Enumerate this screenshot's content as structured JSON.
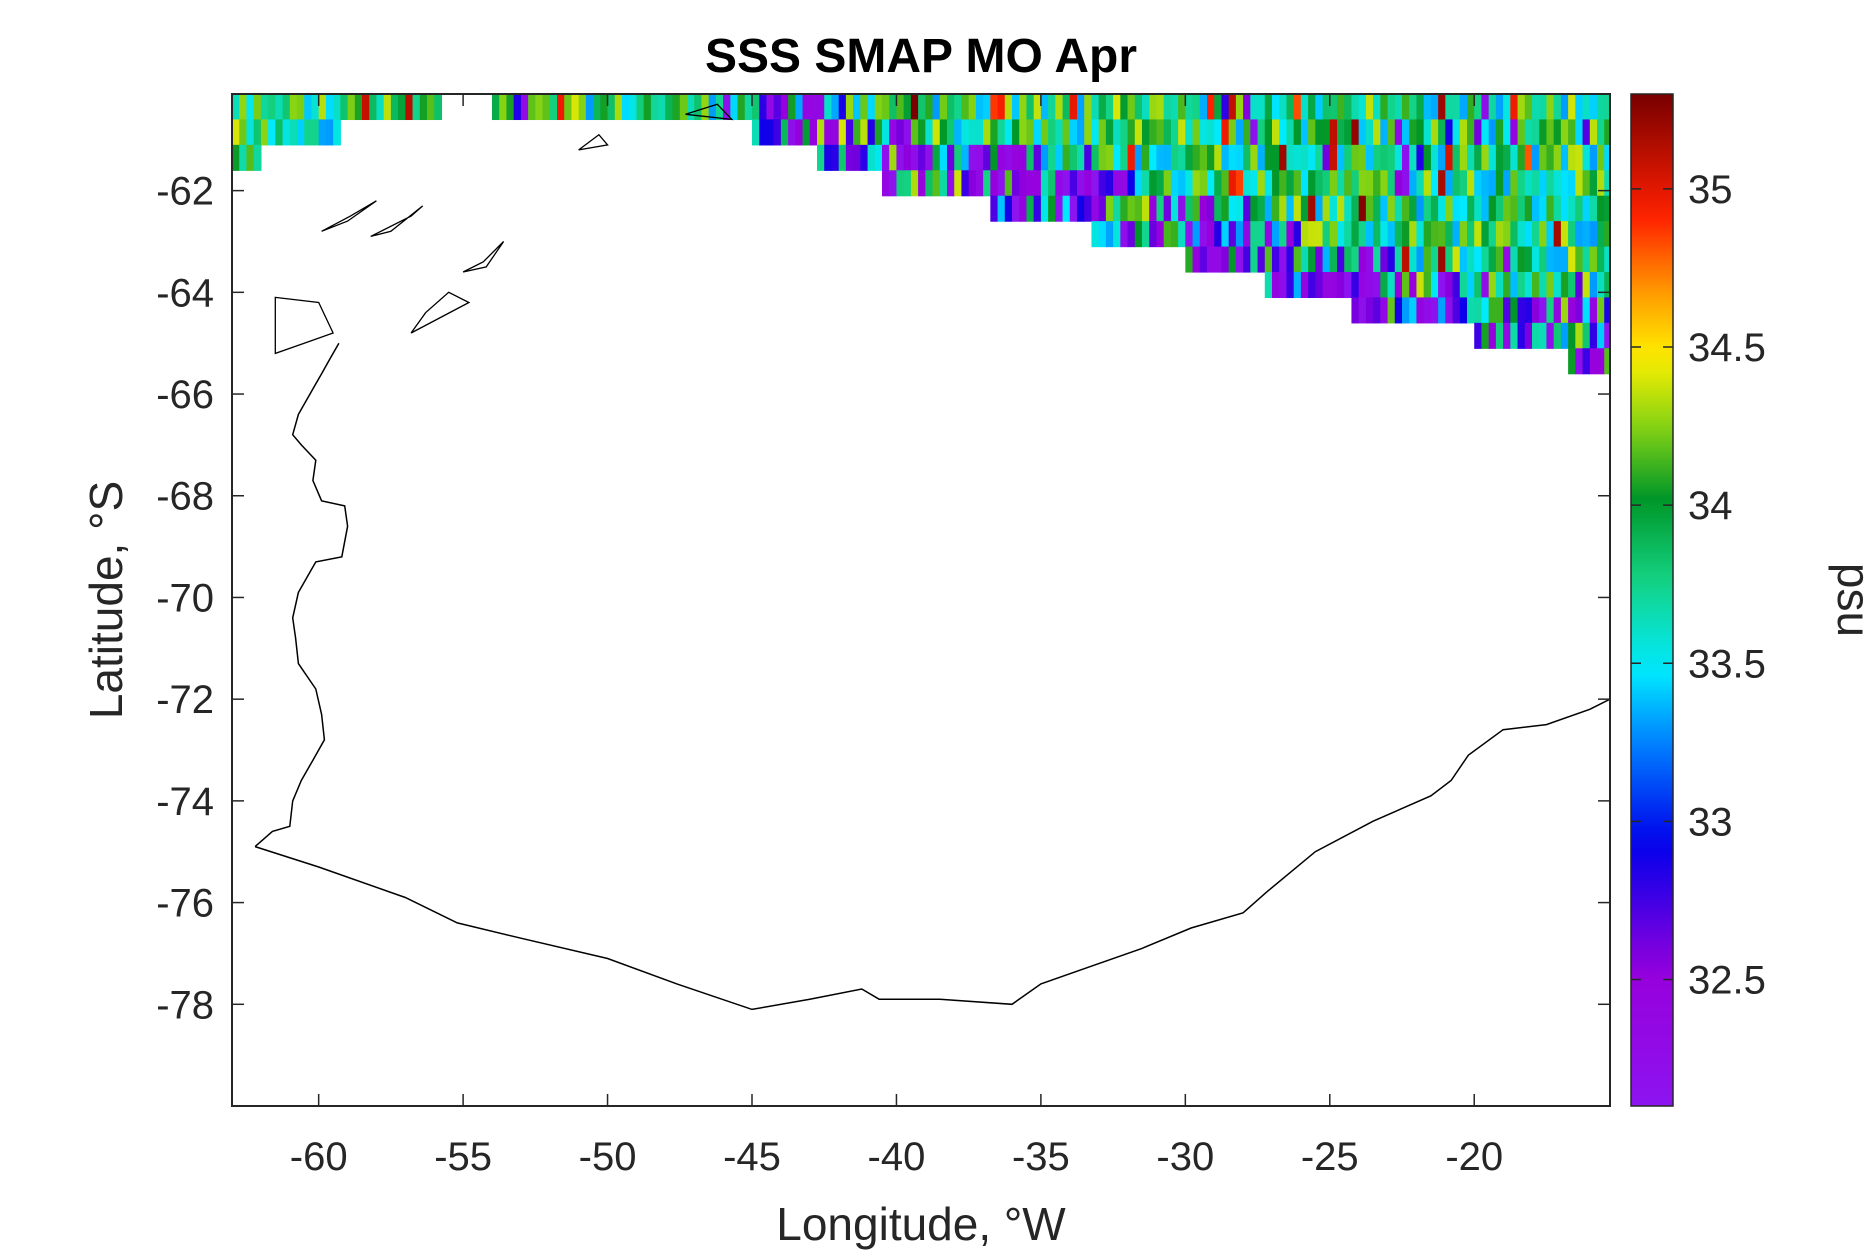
{
  "chart_data": {
    "type": "heatmap",
    "title": "SSS SMAP MO Apr",
    "xlabel": "Longitude, °W",
    "ylabel": "Latitude, °S",
    "xlim": [
      -63,
      -15.3
    ],
    "ylim": [
      -80,
      -60.1
    ],
    "xticks": [
      -60,
      -55,
      -50,
      -45,
      -40,
      -35,
      -30,
      -25,
      -20
    ],
    "yticks": [
      -62,
      -64,
      -66,
      -68,
      -70,
      -72,
      -74,
      -76,
      -78
    ],
    "colorbar": {
      "label": "psu",
      "range": [
        32.1,
        35.3
      ],
      "ticks": [
        32.5,
        33,
        33.5,
        34,
        34.5,
        35
      ],
      "colormap": "jet-like (purple-blue-cyan-green-yellow-red-darkred)"
    },
    "grid": false,
    "data_description_values": {
      "cell_size_deg": [
        0.25,
        0.5
      ],
      "open_ocean_typical_psu": [
        33.3,
        34.4
      ],
      "ice_edge_band_psu": [
        32.1,
        32.9
      ],
      "ice_edge_latitude_by_longitude": [
        [
          -63,
          -61.8
        ],
        [
          -62,
          -61.6
        ],
        [
          -61,
          -61.4
        ],
        [
          -60,
          -61.2
        ],
        [
          -55,
          -60.5
        ],
        [
          -50,
          -61.0
        ],
        [
          -45,
          -61.1
        ],
        [
          -40,
          -62.2
        ],
        [
          -35,
          -62.8
        ],
        [
          -30,
          -63.6
        ],
        [
          -25,
          -64.5
        ],
        [
          -20,
          -65.1
        ],
        [
          -15.3,
          -65.8
        ]
      ]
    },
    "coastline": {
      "west_coast_lon_lat": [
        [
          -62.2,
          -74.9
        ],
        [
          -61.6,
          -74.6
        ],
        [
          -61.0,
          -74.5
        ],
        [
          -60.9,
          -74.0
        ],
        [
          -60.6,
          -73.6
        ],
        [
          -60.2,
          -73.2
        ],
        [
          -59.8,
          -72.8
        ],
        [
          -59.9,
          -72.3
        ],
        [
          -60.1,
          -71.8
        ],
        [
          -60.7,
          -71.3
        ],
        [
          -60.8,
          -70.8
        ],
        [
          -60.9,
          -70.4
        ],
        [
          -60.7,
          -69.9
        ],
        [
          -60.4,
          -69.6
        ],
        [
          -60.1,
          -69.3
        ],
        [
          -59.2,
          -69.2
        ],
        [
          -59.0,
          -68.6
        ],
        [
          -59.1,
          -68.2
        ],
        [
          -59.9,
          -68.1
        ],
        [
          -60.2,
          -67.7
        ],
        [
          -60.1,
          -67.3
        ],
        [
          -60.6,
          -67.0
        ],
        [
          -60.9,
          -66.8
        ],
        [
          -60.7,
          -66.4
        ],
        [
          -60.3,
          -66.0
        ],
        [
          -59.9,
          -65.6
        ],
        [
          -59.6,
          -65.3
        ],
        [
          -59.3,
          -65.0
        ]
      ],
      "south_coast_lon_lat": [
        [
          -62.2,
          -74.9
        ],
        [
          -60.0,
          -75.3
        ],
        [
          -57.0,
          -75.9
        ],
        [
          -55.2,
          -76.4
        ],
        [
          -53.0,
          -76.7
        ],
        [
          -50.0,
          -77.1
        ],
        [
          -47.6,
          -77.6
        ],
        [
          -45.0,
          -78.1
        ],
        [
          -43.0,
          -77.9
        ],
        [
          -41.2,
          -77.7
        ],
        [
          -40.6,
          -77.9
        ],
        [
          -38.5,
          -77.9
        ],
        [
          -36.0,
          -78.0
        ],
        [
          -35.0,
          -77.6
        ],
        [
          -33.5,
          -77.3
        ],
        [
          -31.5,
          -76.9
        ],
        [
          -29.8,
          -76.5
        ],
        [
          -28.0,
          -76.2
        ],
        [
          -27.2,
          -75.8
        ],
        [
          -25.5,
          -75.0
        ],
        [
          -23.5,
          -74.4
        ],
        [
          -21.5,
          -73.9
        ],
        [
          -20.8,
          -73.6
        ],
        [
          -20.2,
          -73.1
        ],
        [
          -19.0,
          -72.6
        ],
        [
          -17.5,
          -72.5
        ],
        [
          -16.0,
          -72.2
        ],
        [
          -15.3,
          -72.0
        ]
      ],
      "islands_lon_lat": [
        [
          [
            -55.0,
            -63.6
          ],
          [
            -54.2,
            -63.5
          ],
          [
            -53.6,
            -63.0
          ],
          [
            -54.3,
            -63.4
          ],
          [
            -55.0,
            -63.6
          ]
        ],
        [
          [
            -56.4,
            -62.3
          ],
          [
            -57.5,
            -62.8
          ],
          [
            -58.2,
            -62.9
          ],
          [
            -56.8,
            -62.5
          ],
          [
            -56.4,
            -62.3
          ]
        ],
        [
          [
            -59.9,
            -62.8
          ],
          [
            -58.9,
            -62.5
          ],
          [
            -58.0,
            -62.2
          ],
          [
            -59.0,
            -62.6
          ],
          [
            -59.9,
            -62.8
          ]
        ],
        [
          [
            -54.8,
            -64.2
          ],
          [
            -56.8,
            -64.8
          ],
          [
            -56.3,
            -64.4
          ],
          [
            -55.5,
            -64.0
          ],
          [
            -54.8,
            -64.2
          ]
        ],
        [
          [
            -61.5,
            -64.1
          ],
          [
            -60.0,
            -64.2
          ],
          [
            -59.5,
            -64.8
          ],
          [
            -60.5,
            -65.0
          ],
          [
            -61.5,
            -65.2
          ],
          [
            -61.5,
            -64.1
          ]
        ],
        [
          [
            -47.3,
            -60.5
          ],
          [
            -45.7,
            -60.6
          ],
          [
            -46.2,
            -60.3
          ],
          [
            -47.3,
            -60.5
          ]
        ],
        [
          [
            -51.0,
            -61.2
          ],
          [
            -50.3,
            -60.9
          ],
          [
            -50.0,
            -61.1
          ],
          [
            -51.0,
            -61.2
          ]
        ]
      ]
    }
  }
}
